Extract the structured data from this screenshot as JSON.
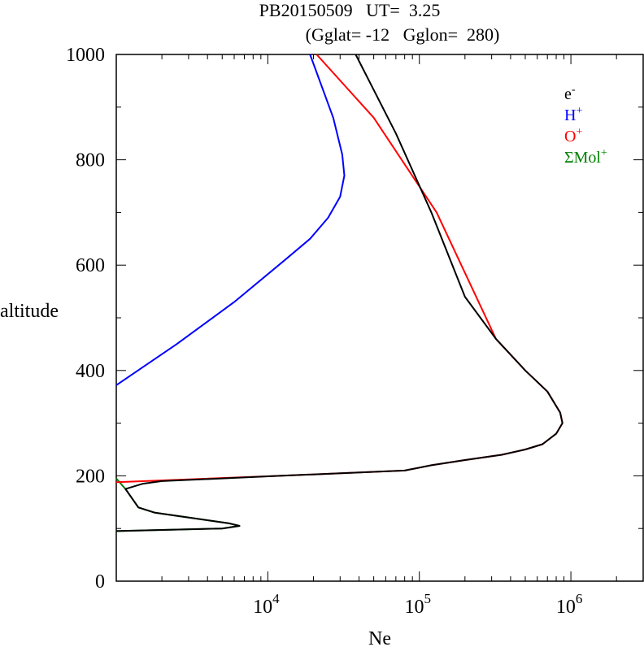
{
  "chart_data": {
    "type": "line",
    "title_line1": "PB20150509   UT=  3.25",
    "title_line2": "(Gglat= -12   Gglon=  280)",
    "xlabel": "Ne",
    "ylabel": "altitude",
    "x_scale": "log",
    "xlim": [
      1000,
      3000000
    ],
    "ylim": [
      0,
      1000
    ],
    "grid": false,
    "legend_position": "top-right",
    "y_ticks": [
      0,
      200,
      400,
      600,
      800,
      1000
    ],
    "x_ticks": [
      {
        "value": 10000,
        "base": "10",
        "exp": "4"
      },
      {
        "value": 100000,
        "base": "10",
        "exp": "5"
      },
      {
        "value": 1000000,
        "base": "10",
        "exp": "6"
      }
    ],
    "series": [
      {
        "name": "e",
        "sup": "-",
        "color": "#000000",
        "points": [
          [
            1000,
            95
          ],
          [
            5000,
            100
          ],
          [
            6500,
            105
          ],
          [
            5500,
            110
          ],
          [
            1800,
            130
          ],
          [
            1400,
            140
          ],
          [
            1150,
            175
          ],
          [
            1500,
            185
          ],
          [
            2000,
            190
          ],
          [
            12000,
            200
          ],
          [
            80000,
            210
          ],
          [
            120000,
            220
          ],
          [
            200000,
            230
          ],
          [
            350000,
            240
          ],
          [
            500000,
            250
          ],
          [
            650000,
            260
          ],
          [
            800000,
            280
          ],
          [
            880000,
            300
          ],
          [
            850000,
            320
          ],
          [
            700000,
            360
          ],
          [
            500000,
            400
          ],
          [
            320000,
            460
          ],
          [
            200000,
            540
          ],
          [
            120000,
            700
          ],
          [
            70000,
            850
          ],
          [
            38000,
            1000
          ]
        ]
      },
      {
        "name": "H",
        "sup": "+",
        "color": "#0000ff",
        "points": [
          [
            1000,
            372
          ],
          [
            2500,
            450
          ],
          [
            6000,
            530
          ],
          [
            13000,
            610
          ],
          [
            19000,
            650
          ],
          [
            25000,
            690
          ],
          [
            30000,
            730
          ],
          [
            32000,
            770
          ],
          [
            31000,
            810
          ],
          [
            27000,
            880
          ],
          [
            19000,
            1000
          ]
        ]
      },
      {
        "name": "O",
        "sup": "+",
        "color": "#ff0000",
        "points": [
          [
            1000,
            188
          ],
          [
            12000,
            200
          ],
          [
            80000,
            210
          ],
          [
            120000,
            220
          ],
          [
            200000,
            230
          ],
          [
            350000,
            240
          ],
          [
            500000,
            250
          ],
          [
            650000,
            260
          ],
          [
            800000,
            280
          ],
          [
            880000,
            300
          ],
          [
            850000,
            320
          ],
          [
            700000,
            360
          ],
          [
            500000,
            400
          ],
          [
            320000,
            460
          ],
          [
            130000,
            700
          ],
          [
            50000,
            880
          ],
          [
            21000,
            1000
          ]
        ]
      },
      {
        "name": "ΣMol",
        "sup": "+",
        "color": "#008000",
        "points": [
          [
            1000,
            95
          ],
          [
            5000,
            100
          ],
          [
            6500,
            105
          ],
          [
            5500,
            110
          ],
          [
            1800,
            130
          ],
          [
            1400,
            140
          ],
          [
            1150,
            175
          ],
          [
            1000,
            195
          ]
        ]
      }
    ]
  }
}
